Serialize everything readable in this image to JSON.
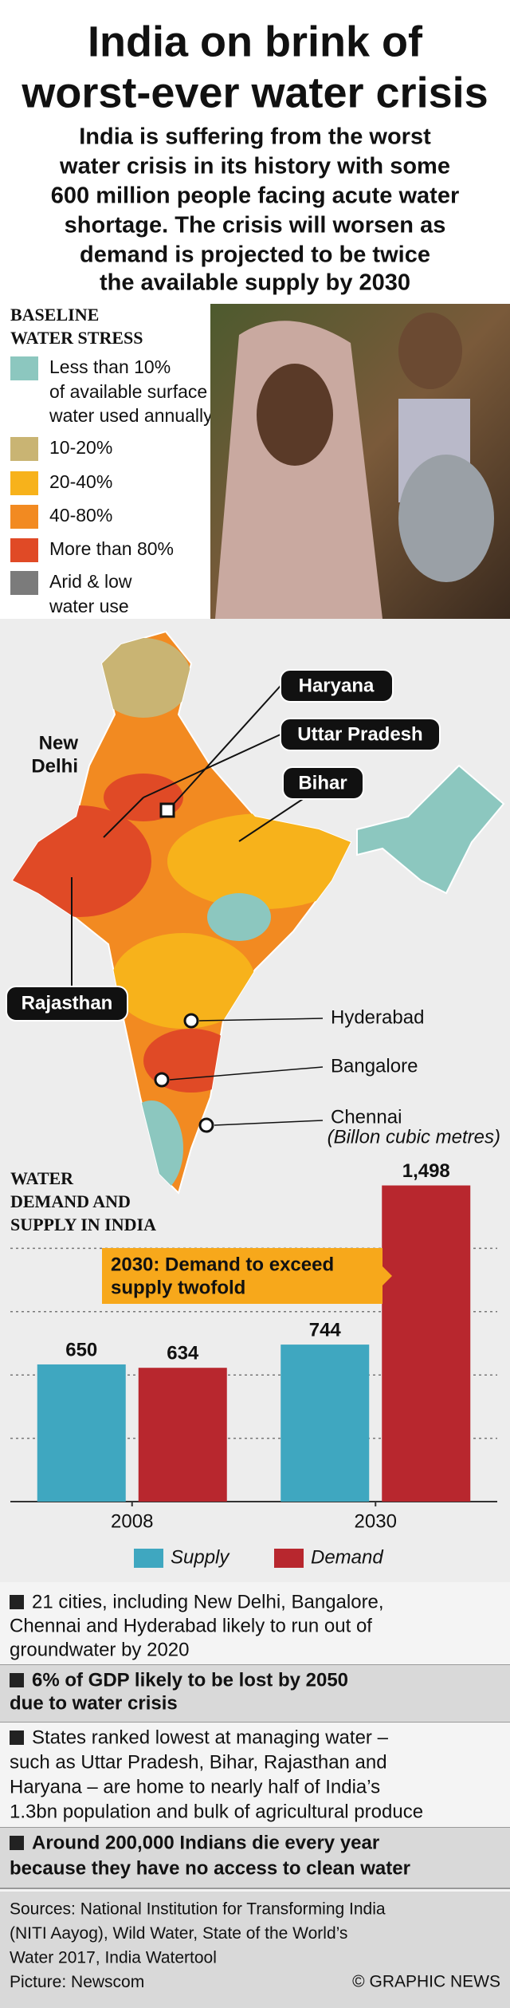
{
  "header": {
    "title": [
      "India on brink of",
      "worst-ever water crisis"
    ],
    "subtitle": [
      "India is suffering from the worst",
      "water crisis in its history with some",
      "600 million people facing acute water",
      "shortage. The crisis will worsen as",
      "demand is projected to be twice",
      "the available supply by 2030"
    ]
  },
  "legend": {
    "title": [
      "BASELINE",
      "WATER STRESS"
    ],
    "items": [
      {
        "color": "#8cc7bf",
        "lines": [
          "Less than 10%",
          "of available surface",
          "water used annually"
        ]
      },
      {
        "color": "#c9b473",
        "lines": [
          "10-20%"
        ]
      },
      {
        "color": "#f7b21b",
        "lines": [
          "20-40%"
        ]
      },
      {
        "color": "#f28a21",
        "lines": [
          "40-80%"
        ]
      },
      {
        "color": "#e04a26",
        "lines": [
          "More than 80%"
        ]
      },
      {
        "color": "#7b7b7b",
        "lines": [
          "Arid & low",
          "water use"
        ]
      }
    ]
  },
  "map": {
    "states": [
      "Haryana",
      "Uttar Pradesh",
      "Bihar",
      "Rajasthan"
    ],
    "capital": [
      "New",
      "Delhi"
    ],
    "cities": [
      "Hyderabad",
      "Bangalore",
      "Chennai"
    ]
  },
  "chart_data": {
    "type": "bar",
    "title": [
      "WATER",
      "DEMAND AND",
      "SUPPLY IN INDIA"
    ],
    "subtitle": "(Billon cubic metres)",
    "categories": [
      "2008",
      "2030"
    ],
    "series": [
      {
        "name": "Supply",
        "color": "#3fa7c0",
        "values": [
          650,
          744
        ],
        "value_labels": [
          "650",
          "744"
        ]
      },
      {
        "name": "Demand",
        "color": "#b8272e",
        "values": [
          634,
          1498
        ],
        "value_labels": [
          "634",
          "1,498"
        ]
      }
    ],
    "ylim": [
      0,
      1500
    ],
    "yticks": [
      0,
      300,
      600,
      900,
      1200
    ],
    "grid": true,
    "annotation": [
      "2030: Demand to exceed",
      "supply twofold"
    ]
  },
  "notes": [
    {
      "bold": false,
      "lines": [
        "21 cities, including New Delhi, Bangalore,",
        "Chennai and Hyderabad likely to run out of",
        "groundwater by 2020"
      ]
    },
    {
      "bold": true,
      "lines": [
        "6% of GDP likely to be lost by 2050",
        "due to water crisis"
      ]
    },
    {
      "bold": false,
      "lines": [
        "States ranked lowest at managing water –",
        "such as Uttar Pradesh, Bihar, Rajasthan and",
        "Haryana – are home to nearly half of India’s",
        "1.3bn population and bulk of agricultural produce"
      ]
    },
    {
      "bold": true,
      "lines": [
        "Around 200,000 Indians die every year",
        "because they have no access to clean water"
      ]
    }
  ],
  "sources": {
    "lines": [
      "Sources: National Institution for Transforming India",
      "(NITI Aayog), Wild Water, State of the World’s",
      "Water 2017, India Watertool",
      "Picture: Newscom"
    ],
    "credit": "© GRAPHIC NEWS"
  }
}
